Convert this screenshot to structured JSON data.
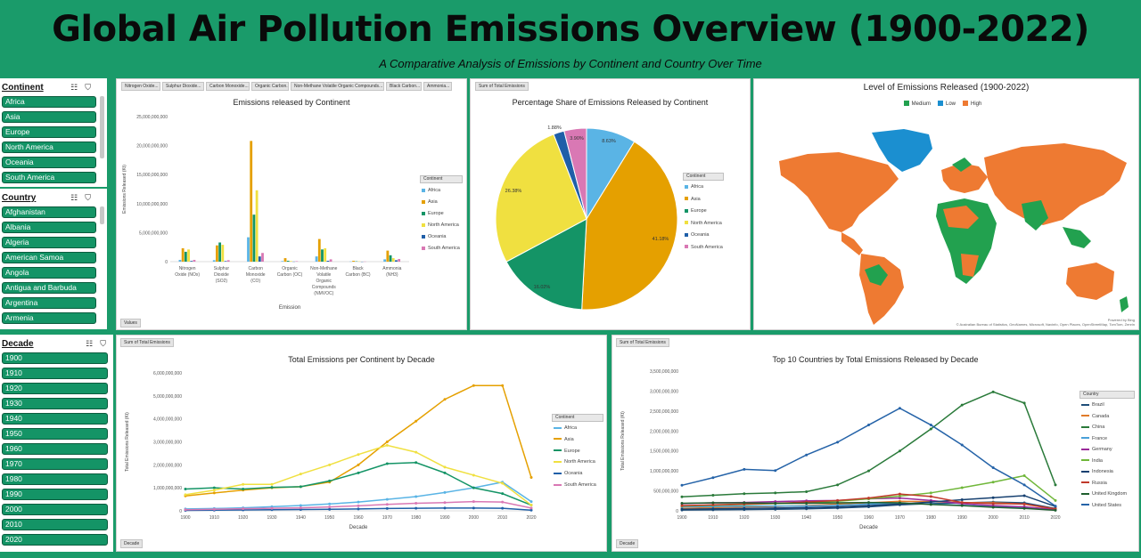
{
  "header": {
    "title": "Global Air Pollution Emissions Overview (1900-2022)",
    "subtitle": "A Comparative Analysis of Emissions by Continent and Country Over Time"
  },
  "colors": {
    "brand_green": "#1a9b6a",
    "slicer_green": "#149466",
    "africa": "#5ab4e5",
    "asia": "#e5a000",
    "europe": "#149466",
    "north_america": "#f0e040",
    "oceania": "#1f5fa8",
    "south_america": "#d978b4",
    "map_medium": "#22a14f",
    "map_low": "#1b8fd0",
    "map_high": "#ee7a32"
  },
  "slicers": {
    "continent": {
      "title": "Continent",
      "items": [
        "Africa",
        "Asia",
        "Europe",
        "North America",
        "Oceania",
        "South America"
      ]
    },
    "country": {
      "title": "Country",
      "items": [
        "Afghanistan",
        "Albania",
        "Algeria",
        "American Samoa",
        "Angola",
        "Antigua and Barbuda",
        "Argentina",
        "Armenia"
      ]
    },
    "decade": {
      "title": "Decade",
      "items": [
        "1900",
        "1910",
        "1920",
        "1930",
        "1940",
        "1950",
        "1960",
        "1970",
        "1980",
        "1990",
        "2000",
        "2010",
        "2020"
      ]
    }
  },
  "field_buttons": {
    "bar_pollutants": [
      "Nitrogen Oxide...",
      "Sulphur Dioxide...",
      "Carbon Monoxide...",
      "Organic Carbon...",
      "Non-Methane Volatile Organic Compounds...",
      "Black Carbon...",
      "Ammonia..."
    ],
    "bar_values": "Values",
    "pie_sum": "Sum of Total Emissions",
    "line1_sum": "Sum of Total Emissions",
    "line1_decade": "Decade",
    "line2_sum": "Sum of Total Emissions",
    "line2_decade": "Decade"
  },
  "legend_titles": {
    "bar": "Continent",
    "pie": "Continent",
    "line1": "Continent",
    "line2": "Country"
  },
  "map": {
    "title": "Level of Emissions Released (1900-2022)",
    "legend": [
      "Medium",
      "Low",
      "High"
    ],
    "attribution_1": "Powered by Bing",
    "attribution_2": "© Australian Bureau of Statistics, GeoNames, Microsoft, Navinfo, Open Places, OpenStreetMap, TomTom, Zenrin"
  },
  "chart_data": [
    {
      "type": "bar",
      "title": "Emissions released by Continent",
      "xlabel": "Emission",
      "ylabel": "Emissions Released (Kt)",
      "ylim": [
        0,
        25000000000
      ],
      "yticks": [
        "0",
        "5,000,000,000",
        "10,000,000,000",
        "15,000,000,000",
        "20,000,000,000",
        "25,000,000,000"
      ],
      "categories": [
        "Nitrogen Oxide (NOx)",
        "Sulphur Dioxide (SO2)",
        "Carbon Monoxide (CO)",
        "Organic Carbon (OC)",
        "Non-Methane Volatile Organic Compounds (NMVOC)",
        "Black Carbon (BC)",
        "Ammonia (NH3)"
      ],
      "series": [
        {
          "name": "Africa",
          "values": [
            300000000,
            250000000,
            4200000000,
            100000000,
            900000000,
            30000000,
            400000000
          ]
        },
        {
          "name": "Asia",
          "values": [
            2300000000,
            2800000000,
            20800000000,
            600000000,
            3900000000,
            150000000,
            1900000000
          ]
        },
        {
          "name": "Europe",
          "values": [
            1700000000,
            3300000000,
            8100000000,
            150000000,
            2100000000,
            60000000,
            1100000000
          ]
        },
        {
          "name": "North America",
          "values": [
            2100000000,
            2900000000,
            12300000000,
            100000000,
            2300000000,
            50000000,
            600000000
          ]
        },
        {
          "name": "Oceania",
          "values": [
            120000000,
            100000000,
            900000000,
            20000000,
            150000000,
            5000000,
            250000000
          ]
        },
        {
          "name": "South America",
          "values": [
            300000000,
            250000000,
            1500000000,
            80000000,
            400000000,
            20000000,
            450000000
          ]
        }
      ]
    },
    {
      "type": "pie",
      "title": "Percentage Share of Emissions Released by Continent",
      "categories": [
        "Africa",
        "Asia",
        "Europe",
        "North America",
        "Oceania",
        "South America"
      ],
      "values": [
        8.63,
        41.18,
        16.02,
        26.38,
        1.88,
        3.9
      ],
      "labels": [
        "8.63%",
        "41.18%",
        "16.02%",
        "26.38%",
        "1.88%",
        "3.90%"
      ]
    },
    {
      "type": "line",
      "title": "Total Emissions per Continent by Decade",
      "xlabel": "Decade",
      "ylabel": "Total Emissions Released (Kt)",
      "ylim": [
        0,
        6000000000
      ],
      "yticks": [
        "0",
        "1,000,000,000",
        "2,000,000,000",
        "3,000,000,000",
        "4,000,000,000",
        "5,000,000,000",
        "6,000,000,000"
      ],
      "x": [
        "1900",
        "1910",
        "1920",
        "1930",
        "1940",
        "1950",
        "1960",
        "1970",
        "1980",
        "1990",
        "2000",
        "2010",
        "2020"
      ],
      "series": [
        {
          "name": "Africa",
          "values": [
            80000000,
            100000000,
            130000000,
            180000000,
            230000000,
            300000000,
            380000000,
            500000000,
            620000000,
            800000000,
            1000000000,
            1250000000,
            400000000
          ]
        },
        {
          "name": "Asia",
          "values": [
            650000000,
            780000000,
            900000000,
            1000000000,
            1050000000,
            1250000000,
            2000000000,
            3000000000,
            3900000000,
            4850000000,
            5450000000,
            5450000000,
            1450000000
          ]
        },
        {
          "name": "Europe",
          "values": [
            950000000,
            1000000000,
            950000000,
            1020000000,
            1050000000,
            1300000000,
            1650000000,
            2050000000,
            2100000000,
            1650000000,
            1000000000,
            750000000,
            250000000
          ]
        },
        {
          "name": "North America",
          "values": [
            700000000,
            900000000,
            1150000000,
            1150000000,
            1600000000,
            2000000000,
            2450000000,
            2850000000,
            2550000000,
            1900000000,
            1550000000,
            1200000000,
            250000000
          ]
        },
        {
          "name": "Oceania",
          "values": [
            20000000,
            30000000,
            40000000,
            50000000,
            60000000,
            70000000,
            80000000,
            100000000,
            110000000,
            120000000,
            120000000,
            110000000,
            30000000
          ]
        },
        {
          "name": "South America",
          "values": [
            50000000,
            70000000,
            90000000,
            110000000,
            130000000,
            170000000,
            220000000,
            280000000,
            330000000,
            360000000,
            400000000,
            380000000,
            120000000
          ]
        }
      ]
    },
    {
      "type": "line",
      "title": "Top 10 Countries by Total Emissions Released by Decade",
      "xlabel": "Decade",
      "ylabel": "Total Emissions Released (Kt)",
      "ylim": [
        0,
        3500000000
      ],
      "yticks": [
        "0",
        "500,000,000",
        "1,000,000,000",
        "1,500,000,000",
        "2,000,000,000",
        "2,500,000,000",
        "3,000,000,000",
        "3,500,000,000"
      ],
      "x": [
        "1900",
        "1910",
        "1920",
        "1930",
        "1940",
        "1950",
        "1960",
        "1970",
        "1980",
        "1990",
        "2000",
        "2010",
        "2020"
      ],
      "series": [
        {
          "name": "Brazil",
          "values": [
            20000000,
            25000000,
            30000000,
            40000000,
            50000000,
            70000000,
            100000000,
            150000000,
            180000000,
            200000000,
            220000000,
            200000000,
            60000000
          ]
        },
        {
          "name": "Canada",
          "values": [
            60000000,
            80000000,
            100000000,
            110000000,
            130000000,
            170000000,
            200000000,
            240000000,
            230000000,
            210000000,
            200000000,
            170000000,
            40000000
          ]
        },
        {
          "name": "China",
          "values": [
            350000000,
            390000000,
            430000000,
            450000000,
            480000000,
            650000000,
            1000000000,
            1500000000,
            2050000000,
            2650000000,
            2980000000,
            2700000000,
            650000000
          ]
        },
        {
          "name": "France",
          "values": [
            100000000,
            110000000,
            120000000,
            120000000,
            120000000,
            140000000,
            170000000,
            190000000,
            170000000,
            140000000,
            110000000,
            80000000,
            20000000
          ]
        },
        {
          "name": "Germany",
          "values": [
            180000000,
            200000000,
            210000000,
            230000000,
            250000000,
            260000000,
            300000000,
            320000000,
            260000000,
            180000000,
            130000000,
            100000000,
            30000000
          ]
        },
        {
          "name": "India",
          "values": [
            120000000,
            140000000,
            160000000,
            180000000,
            200000000,
            240000000,
            300000000,
            370000000,
            450000000,
            580000000,
            720000000,
            880000000,
            260000000
          ]
        },
        {
          "name": "Indonesia",
          "values": [
            40000000,
            50000000,
            60000000,
            70000000,
            80000000,
            100000000,
            130000000,
            170000000,
            220000000,
            280000000,
            330000000,
            380000000,
            110000000
          ]
        },
        {
          "name": "Russia",
          "values": [
            130000000,
            150000000,
            170000000,
            190000000,
            220000000,
            260000000,
            320000000,
            420000000,
            360000000,
            210000000,
            180000000,
            170000000,
            50000000
          ]
        },
        {
          "name": "United Kingdom",
          "values": [
            190000000,
            200000000,
            200000000,
            190000000,
            190000000,
            200000000,
            210000000,
            200000000,
            160000000,
            130000000,
            90000000,
            60000000,
            15000000
          ]
        },
        {
          "name": "United States",
          "values": [
            640000000,
            830000000,
            1040000000,
            1010000000,
            1400000000,
            1720000000,
            2150000000,
            2570000000,
            2150000000,
            1650000000,
            1080000000,
            650000000,
            120000000
          ]
        }
      ]
    }
  ]
}
